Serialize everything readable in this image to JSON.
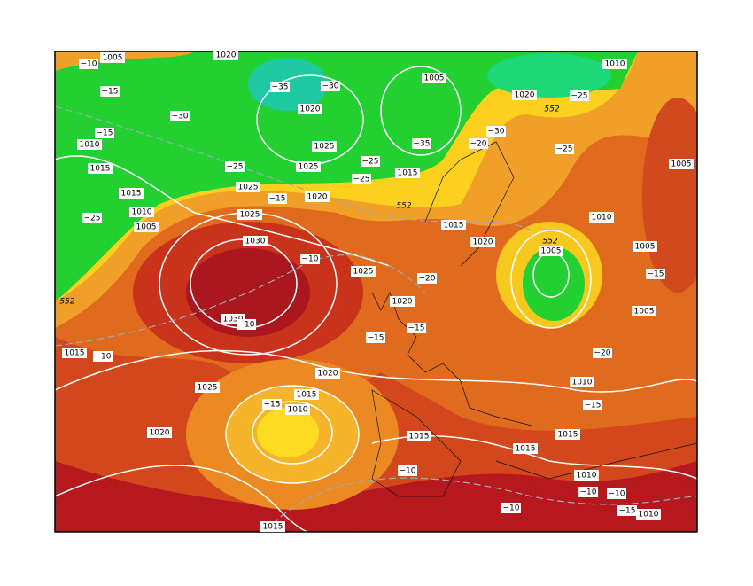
{
  "map": {
    "isobar_labels": [
      "1020",
      "1005",
      "1005",
      "1020",
      "1025",
      "1010",
      "1015",
      "1025",
      "1020",
      "1015",
      "1010",
      "1005",
      "1025",
      "1025",
      "1030",
      "1030",
      "1025",
      "1020",
      "1015",
      "1020",
      "1010",
      "1005",
      "1010",
      "1005",
      "1005",
      "1005",
      "1015",
      "1020",
      "1020",
      "1025",
      "1015",
      "1010",
      "1020",
      "1015",
      "1015",
      "1015",
      "1010",
      "1010",
      "1010",
      "1015",
      "1015"
    ],
    "temperature_labels": [
      "−10",
      "−15",
      "−30",
      "−35",
      "−30",
      "−15",
      "−25",
      "−25",
      "−25",
      "−15",
      "−25",
      "−10",
      "−20",
      "−15",
      "−15",
      "−10",
      "−10",
      "−15",
      "−10",
      "−10",
      "−10",
      "−10",
      "−15",
      "−15",
      "−20",
      "−15",
      "−20",
      "−30",
      "−25",
      "−25",
      "−35"
    ],
    "height_labels": [
      "552",
      "552",
      "552",
      "552"
    ]
  }
}
